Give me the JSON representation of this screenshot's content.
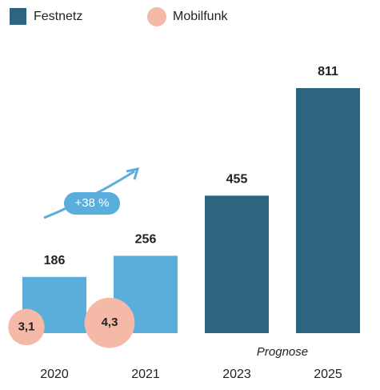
{
  "chart_data": {
    "type": "bar",
    "categories": [
      "2020",
      "2021",
      "2023",
      "2025"
    ],
    "series": [
      {
        "name": "Festnetz",
        "color": "#2d6480",
        "bar_colors": [
          "#5aaedc",
          "#5aaedc",
          "#2d6480",
          "#2d6480"
        ],
        "values": [
          186,
          256,
          455,
          811
        ]
      },
      {
        "name": "Mobilfunk",
        "color": "#f5b9a8",
        "marker": "bubble",
        "values": [
          3.1,
          4.3,
          null,
          null
        ],
        "value_labels": [
          "3,1",
          "4,3",
          null,
          null
        ]
      }
    ],
    "annotations": [
      {
        "text": "+38 %"
      },
      {
        "text": "Prognose"
      }
    ],
    "legend": "top-left"
  }
}
